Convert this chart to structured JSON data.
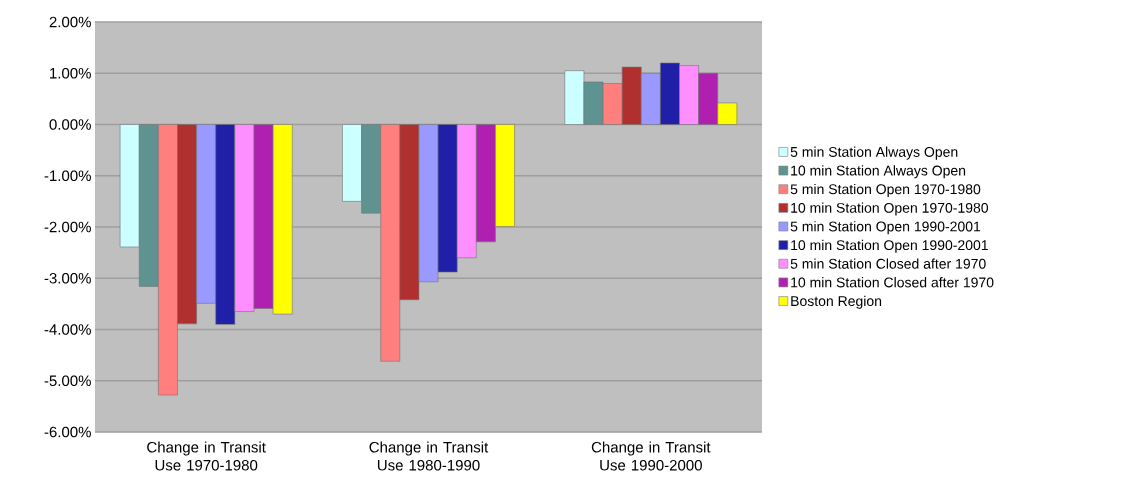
{
  "chart_data": {
    "type": "bar",
    "categories": [
      "Change in Transit Use 1970-1980",
      "Change in Transit Use 1980-1990",
      "Change in Transit Use 1990-2000"
    ],
    "series": [
      {
        "name": "5 min Station Always Open",
        "color": "#ccffff",
        "values": [
          -2.39,
          -1.5,
          1.05
        ]
      },
      {
        "name": "10 min Station Always Open",
        "color": "#5f9391",
        "values": [
          -3.16,
          -1.73,
          0.83
        ]
      },
      {
        "name": "5 min Station Open 1970-1980",
        "color": "#ff7f7f",
        "values": [
          -5.28,
          -4.62,
          0.8
        ]
      },
      {
        "name": "10 min Station Open 1970-1980",
        "color": "#b03030",
        "values": [
          -3.89,
          -3.42,
          1.12
        ]
      },
      {
        "name": "5 min Station Open 1990-2001",
        "color": "#9999ff",
        "values": [
          -3.49,
          -3.07,
          1.0
        ]
      },
      {
        "name": "10 min Station Open 1990-2001",
        "color": "#1f1fa8",
        "values": [
          -3.9,
          -2.88,
          1.2
        ]
      },
      {
        "name": "5 min Station Closed after 1970",
        "color": "#ff8fff",
        "values": [
          -3.65,
          -2.6,
          1.15
        ]
      },
      {
        "name": "10 min Station Closed after 1970",
        "color": "#b020b0",
        "values": [
          -3.59,
          -2.29,
          1.0
        ]
      },
      {
        "name": "Boston Region",
        "color": "#ffff00",
        "values": [
          -3.7,
          -1.99,
          0.42
        ]
      }
    ],
    "ylim": [
      -6,
      2
    ],
    "yticks": [
      {
        "value": -6,
        "label": "-6.00%"
      },
      {
        "value": -5,
        "label": "-5.00%"
      },
      {
        "value": -4,
        "label": "-4.00%"
      },
      {
        "value": -3,
        "label": "-3.00%"
      },
      {
        "value": -2,
        "label": "-2.00%"
      },
      {
        "value": -1,
        "label": "-1.00%"
      },
      {
        "value": 0,
        "label": "0.00%"
      },
      {
        "value": 1,
        "label": "1.00%"
      },
      {
        "value": 2,
        "label": "2.00%"
      }
    ],
    "grid": "y",
    "legend": "right"
  }
}
